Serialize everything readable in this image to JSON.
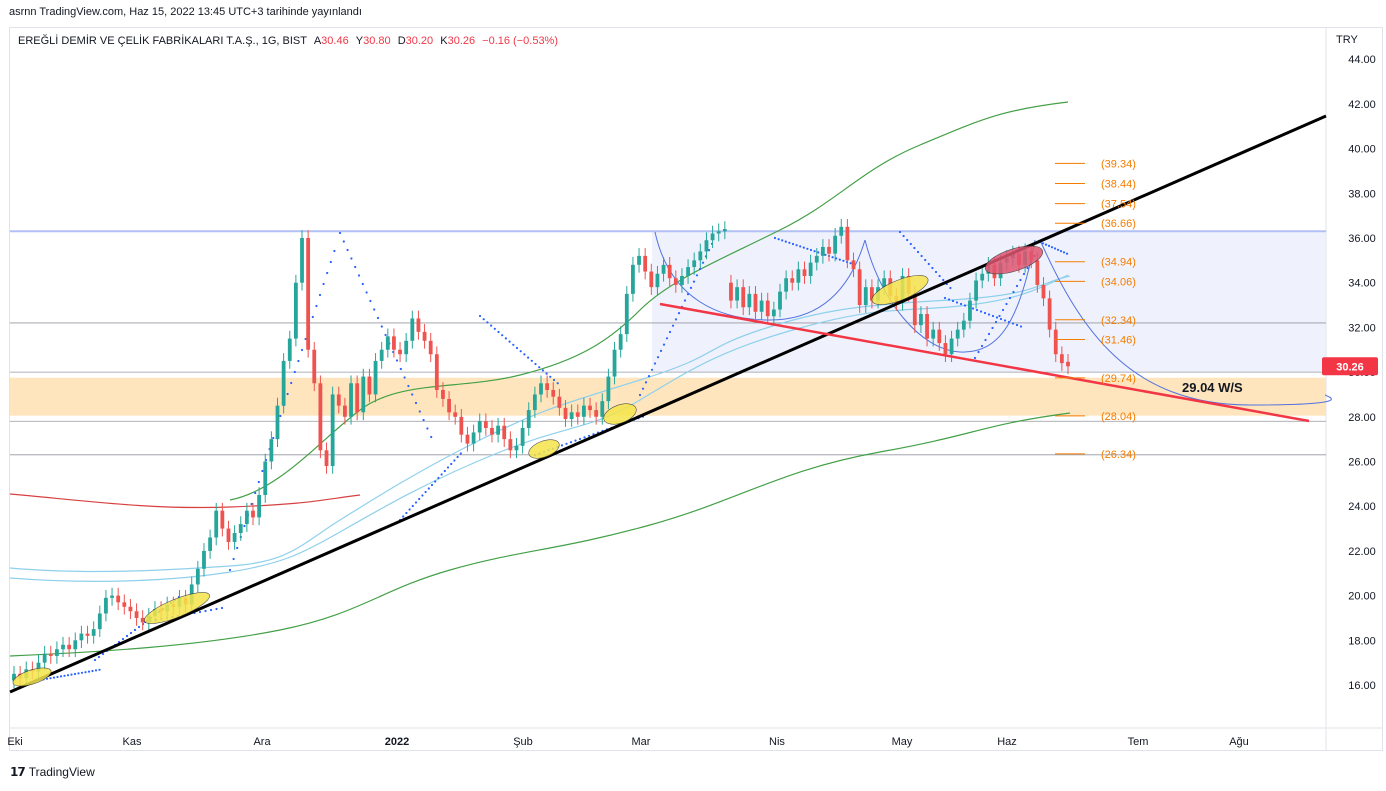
{
  "header": {
    "published": "asrnn TradingView.com, Haz 15, 2022 13:45 UTC+3 tarihinde yayınlandı",
    "symbol": "EREĞLİ DEMİR VE ÇELİK FABRİKALARI T.A.Ş., 1G, BIST",
    "open_label": "A",
    "open": "30.46",
    "high_label": "Y",
    "high": "30.80",
    "low_label": "D",
    "low": "30.20",
    "close_label": "K",
    "close": "30.26",
    "change": "−0.16 (−0.53%)"
  },
  "currency": "TRY",
  "brand": "TradingView",
  "colors": {
    "up": "#26a69a",
    "down": "#ef5350",
    "trend": "#000000",
    "support": "#f23645",
    "fib": "#f57c00",
    "zone": "#ffe0b2",
    "resistance": "#b2c0f5",
    "bb_upper": "#43a047",
    "ma_light": "#8fd0ec",
    "ma_red": "#d84040",
    "psar": "#2962ff"
  },
  "annotations": {
    "target_label": "29.04 W/S",
    "last_price_label": "30.26"
  },
  "chart_data": {
    "type": "candlestick",
    "y_axis": {
      "ticks": [
        "44.00",
        "42.00",
        "40.00",
        "38.00",
        "36.00",
        "34.00",
        "32.00",
        "30.00",
        "28.00",
        "26.00",
        "24.00",
        "22.00",
        "20.00",
        "18.00",
        "16.00"
      ],
      "ylim": [
        14.6,
        44.8
      ]
    },
    "x_axis": {
      "ticks": [
        "Eki",
        "Kas",
        "Ara",
        "2022",
        "Şub",
        "Mar",
        "Nis",
        "May",
        "Haz",
        "Tem",
        "Ağu"
      ]
    },
    "fib_levels": [
      {
        "label": "(39.34)",
        "value": 39.34
      },
      {
        "label": "(38.44)",
        "value": 38.44
      },
      {
        "label": "(37.54)",
        "value": 37.54
      },
      {
        "label": "(36.66)",
        "value": 36.66
      },
      {
        "label": "(34.94)",
        "value": 34.94
      },
      {
        "label": "(34.06)",
        "value": 34.06
      },
      {
        "label": "(32.34)",
        "value": 32.34
      },
      {
        "label": "(31.46)",
        "value": 31.46
      },
      {
        "label": "(29.74)",
        "value": 29.74
      },
      {
        "label": "(28.04)",
        "value": 28.04
      },
      {
        "label": "(26.34)",
        "value": 26.34
      }
    ],
    "horizontal_lines": [
      36.3,
      32.2,
      30.0,
      27.8,
      26.3
    ],
    "zone": [
      28.05,
      29.75
    ],
    "candles": [
      [
        16.2,
        16.5
      ],
      [
        16.5,
        16.3
      ],
      [
        16.3,
        16.7
      ],
      [
        16.7,
        16.6
      ],
      [
        16.6,
        17.0
      ],
      [
        17.0,
        17.4
      ],
      [
        17.4,
        17.3
      ],
      [
        17.3,
        17.6
      ],
      [
        17.6,
        17.8
      ],
      [
        17.8,
        17.6
      ],
      [
        17.6,
        18.0
      ],
      [
        18.0,
        18.3
      ],
      [
        18.3,
        18.2
      ],
      [
        18.2,
        18.5
      ],
      [
        18.5,
        19.2
      ],
      [
        19.2,
        19.9
      ],
      [
        19.9,
        20.0
      ],
      [
        20.0,
        19.7
      ],
      [
        19.7,
        19.5
      ],
      [
        19.5,
        19.3
      ],
      [
        19.3,
        19.0
      ],
      [
        19.0,
        18.8
      ],
      [
        18.8,
        19.1
      ],
      [
        19.1,
        19.4
      ],
      [
        19.4,
        19.3
      ],
      [
        19.3,
        19.6
      ],
      [
        19.6,
        19.5
      ],
      [
        19.5,
        19.9
      ],
      [
        19.9,
        19.6
      ],
      [
        19.6,
        20.5
      ],
      [
        20.5,
        21.2
      ],
      [
        21.2,
        22.0
      ],
      [
        22.0,
        22.6
      ],
      [
        22.6,
        23.8
      ],
      [
        23.8,
        23.0
      ],
      [
        23.0,
        22.4
      ],
      [
        22.4,
        22.8
      ],
      [
        22.8,
        23.2
      ],
      [
        23.2,
        23.8
      ],
      [
        23.8,
        23.5
      ],
      [
        23.5,
        24.5
      ],
      [
        24.5,
        26.0
      ],
      [
        26.0,
        27.0
      ],
      [
        27.0,
        28.5
      ],
      [
        28.5,
        30.5
      ],
      [
        30.5,
        31.5
      ],
      [
        31.5,
        34.0
      ],
      [
        34.0,
        36.0
      ],
      [
        36.0,
        31.0
      ],
      [
        31.0,
        29.5
      ],
      [
        29.5,
        26.5
      ],
      [
        26.5,
        25.8
      ],
      [
        25.8,
        29.0
      ],
      [
        29.0,
        28.5
      ],
      [
        28.5,
        28.0
      ],
      [
        28.0,
        29.5
      ],
      [
        29.5,
        28.2
      ],
      [
        28.2,
        29.8
      ],
      [
        29.8,
        29.0
      ],
      [
        29.0,
        30.5
      ],
      [
        30.5,
        31.0
      ],
      [
        31.0,
        31.6
      ],
      [
        31.6,
        31.0
      ],
      [
        31.0,
        30.8
      ],
      [
        30.8,
        31.4
      ],
      [
        31.4,
        32.4
      ],
      [
        32.4,
        31.8
      ],
      [
        31.8,
        31.4
      ],
      [
        31.4,
        30.8
      ],
      [
        30.8,
        29.2
      ],
      [
        29.2,
        28.8
      ],
      [
        28.8,
        28.2
      ],
      [
        28.2,
        28.0
      ],
      [
        28.0,
        27.2
      ],
      [
        27.2,
        26.8
      ],
      [
        26.8,
        27.3
      ],
      [
        27.3,
        27.8
      ],
      [
        27.8,
        27.5
      ],
      [
        27.5,
        27.2
      ],
      [
        27.2,
        27.6
      ],
      [
        27.6,
        27.0
      ],
      [
        27.0,
        26.5
      ],
      [
        26.5,
        26.7
      ],
      [
        26.7,
        27.5
      ],
      [
        27.5,
        28.3
      ],
      [
        28.3,
        29.0
      ],
      [
        29.0,
        29.5
      ],
      [
        29.5,
        29.2
      ],
      [
        29.2,
        28.9
      ],
      [
        28.9,
        28.4
      ],
      [
        28.4,
        27.9
      ],
      [
        27.9,
        28.2
      ],
      [
        28.2,
        28.0
      ],
      [
        28.0,
        28.5
      ],
      [
        28.5,
        28.3
      ],
      [
        28.3,
        28.0
      ],
      [
        28.0,
        28.7
      ],
      [
        28.7,
        29.8
      ],
      [
        29.8,
        31.0
      ],
      [
        31.0,
        31.7
      ],
      [
        31.7,
        33.5
      ],
      [
        33.5,
        34.8
      ],
      [
        34.8,
        35.2
      ],
      [
        35.2,
        34.5
      ],
      [
        34.5,
        33.8
      ],
      [
        33.8,
        34.4
      ],
      [
        34.4,
        34.8
      ],
      [
        34.8,
        34.2
      ],
      [
        34.2,
        33.9
      ],
      [
        33.9,
        34.3
      ],
      [
        34.3,
        34.7
      ],
      [
        34.7,
        35.0
      ],
      [
        35.0,
        35.4
      ],
      [
        35.4,
        35.9
      ],
      [
        35.9,
        36.2
      ],
      [
        36.2,
        36.3
      ],
      [
        36.3,
        36.4
      ],
      [
        34.0,
        33.2
      ],
      [
        33.2,
        33.8
      ],
      [
        33.8,
        32.9
      ],
      [
        32.9,
        33.5
      ],
      [
        33.5,
        32.7
      ],
      [
        32.7,
        33.2
      ],
      [
        33.2,
        32.5
      ],
      [
        32.5,
        32.8
      ],
      [
        32.8,
        33.6
      ],
      [
        33.6,
        34.2
      ],
      [
        34.2,
        34.0
      ],
      [
        34.0,
        34.6
      ],
      [
        34.6,
        34.3
      ],
      [
        34.3,
        34.9
      ],
      [
        34.9,
        35.2
      ],
      [
        35.2,
        35.6
      ],
      [
        35.6,
        35.3
      ],
      [
        35.3,
        36.1
      ],
      [
        36.1,
        36.5
      ],
      [
        36.5,
        35.0
      ],
      [
        35.0,
        34.6
      ],
      [
        34.6,
        33.0
      ],
      [
        33.0,
        33.8
      ],
      [
        33.8,
        33.2
      ],
      [
        33.2,
        33.8
      ],
      [
        33.8,
        34.2
      ],
      [
        34.2,
        33.4
      ],
      [
        33.4,
        33.1
      ],
      [
        33.1,
        34.3
      ],
      [
        34.3,
        33.5
      ],
      [
        33.5,
        32.1
      ],
      [
        32.1,
        32.6
      ],
      [
        32.6,
        31.5
      ],
      [
        31.5,
        31.9
      ],
      [
        31.9,
        31.3
      ],
      [
        31.3,
        30.8
      ],
      [
        30.8,
        31.5
      ],
      [
        31.5,
        31.9
      ],
      [
        31.9,
        32.3
      ],
      [
        32.3,
        33.2
      ],
      [
        33.2,
        34.1
      ],
      [
        34.1,
        34.4
      ],
      [
        34.4,
        34.8
      ],
      [
        34.8,
        34.2
      ],
      [
        34.2,
        34.9
      ],
      [
        34.9,
        35.1
      ],
      [
        35.1,
        35.3
      ],
      [
        35.3,
        34.8
      ],
      [
        34.8,
        35.4
      ],
      [
        35.4,
        35.0
      ],
      [
        35.0,
        33.9
      ],
      [
        33.9,
        33.3
      ],
      [
        33.3,
        31.9
      ],
      [
        31.9,
        30.8
      ],
      [
        30.8,
        30.4
      ],
      [
        30.46,
        30.26
      ]
    ]
  }
}
